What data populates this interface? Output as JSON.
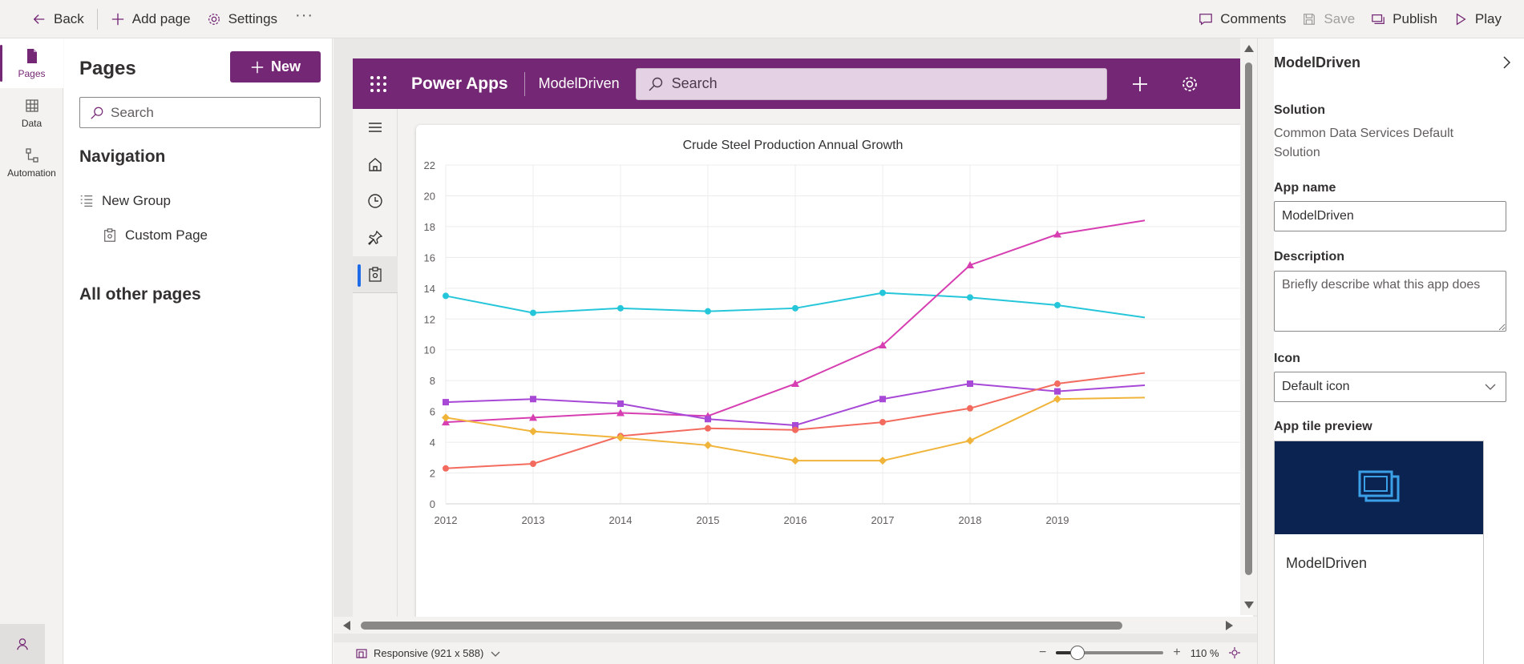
{
  "topbar": {
    "back_label": "Back",
    "add_page_label": "Add page",
    "settings_label": "Settings",
    "more_label": "···",
    "comments_label": "Comments",
    "save_label": "Save",
    "publish_label": "Publish",
    "play_label": "Play"
  },
  "rail": {
    "items": [
      {
        "label": "Pages",
        "icon": "page-icon"
      },
      {
        "label": "Data",
        "icon": "table-icon"
      },
      {
        "label": "Automation",
        "icon": "flow-icon"
      }
    ],
    "bottom_icon": "virtual-agent-icon"
  },
  "pages_panel": {
    "title": "Pages",
    "new_label": "New",
    "search_placeholder": "Search",
    "navigation_heading": "Navigation",
    "nav_items": [
      {
        "label": "New Group",
        "icon": "group-list-icon"
      },
      {
        "label": "Custom Page",
        "icon": "custom-page-icon"
      }
    ],
    "other_heading": "All other pages"
  },
  "app_preview": {
    "brand": "Power Apps",
    "app_name": "ModelDriven",
    "search_placeholder": "Search",
    "header_icons": [
      "plus-icon",
      "gear-icon"
    ],
    "sitemap_icons": [
      "hamburger-icon",
      "home-icon",
      "recent-icon",
      "pin-icon",
      "custom-page-icon"
    ]
  },
  "chart_data": {
    "type": "line",
    "title": "Crude Steel Production Annual Growth",
    "x": [
      "2012",
      "2013",
      "2014",
      "2015",
      "2016",
      "2017",
      "2018",
      "2019"
    ],
    "ylim": [
      0,
      22
    ],
    "yticks": [
      0,
      2,
      4,
      6,
      8,
      10,
      12,
      14,
      16,
      18,
      20,
      22
    ],
    "grid": true,
    "series": [
      {
        "values": [
          13.5,
          12.4,
          12.7,
          12.5,
          12.7,
          13.7,
          13.4,
          12.9
        ],
        "tail": 12.1,
        "color": "#26c6da",
        "marker": "circle"
      },
      {
        "values": [
          5.3,
          5.6,
          5.9,
          5.7,
          7.8,
          10.3,
          15.5,
          17.5
        ],
        "tail": 18.4,
        "color": "#d63eb1",
        "marker": "triangle"
      },
      {
        "values": [
          6.6,
          6.8,
          6.5,
          5.5,
          5.1,
          6.8,
          7.8,
          7.3
        ],
        "tail": 7.7,
        "color": "#a748d6",
        "marker": "square"
      },
      {
        "values": [
          2.3,
          2.6,
          4.4,
          4.9,
          4.8,
          5.3,
          6.2,
          7.8
        ],
        "tail": 8.5,
        "color": "#f36b5e",
        "marker": "circle"
      },
      {
        "values": [
          5.6,
          4.7,
          4.3,
          3.8,
          2.8,
          2.8,
          4.1,
          6.8
        ],
        "tail": 6.9,
        "color": "#f1b43b",
        "marker": "diamond"
      }
    ]
  },
  "status_bar": {
    "responsive_label": "Responsive (921 x 588)",
    "zoom_minus": "−",
    "zoom_plus": "+",
    "zoom_value": "110 %",
    "zoom_fraction": 0.2
  },
  "properties": {
    "title": "ModelDriven",
    "solution_label": "Solution",
    "solution_value": "Common Data Services Default Solution",
    "app_name_label": "App name",
    "app_name_value": "ModelDriven",
    "description_label": "Description",
    "description_placeholder": "Briefly describe what this app does",
    "icon_label": "Icon",
    "icon_value": "Default icon",
    "tile_preview_label": "App tile preview",
    "tile_name": "ModelDriven",
    "tile_bg_color": "#0b2350",
    "tile_icon_color": "#3ca0e8"
  },
  "colors": {
    "accent": "#742774",
    "canvas_bg": "#e9e8e6"
  }
}
